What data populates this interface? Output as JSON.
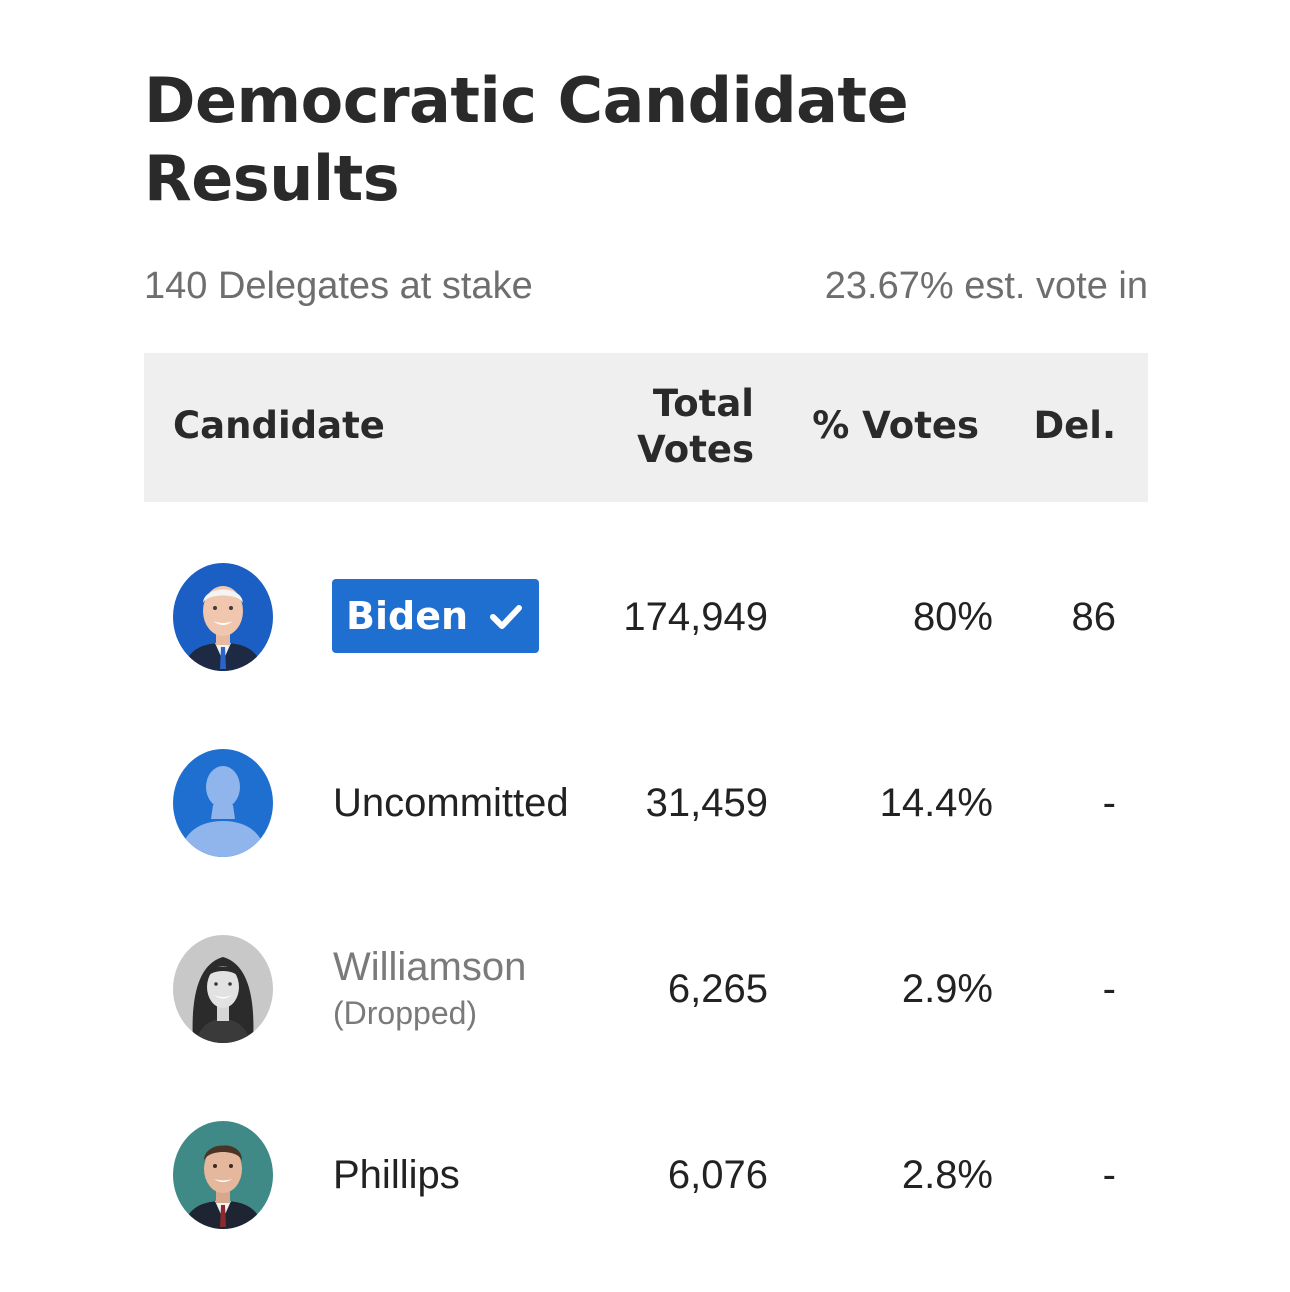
{
  "title": "Democratic Candidate Results",
  "delegates_at_stake": "140 Delegates at stake",
  "vote_in": "23.67% est. vote in",
  "table": {
    "headers": {
      "candidate": "Candidate",
      "total_votes_line1": "Total",
      "total_votes_line2": "Votes",
      "pct_votes": "% Votes",
      "delegates": "Del."
    },
    "rows": [
      {
        "name": "Biden",
        "winner": true,
        "avatar": "biden-photo",
        "votes": "174,949",
        "pct": "80%",
        "del": "86"
      },
      {
        "name": "Uncommitted",
        "winner": false,
        "avatar": "person-silhouette-icon",
        "votes": "31,459",
        "pct": "14.4%",
        "del": "-"
      },
      {
        "name": "Williamson",
        "status": "(Dropped)",
        "winner": false,
        "avatar": "williamson-photo",
        "votes": "6,265",
        "pct": "2.9%",
        "del": "-"
      },
      {
        "name": "Phillips",
        "winner": false,
        "avatar": "phillips-photo",
        "votes": "6,076",
        "pct": "2.8%",
        "del": "-"
      }
    ]
  },
  "colors": {
    "winner_badge": "#1f6fd1",
    "header_bg": "#efefef",
    "muted_text": "#6e6e6e"
  }
}
